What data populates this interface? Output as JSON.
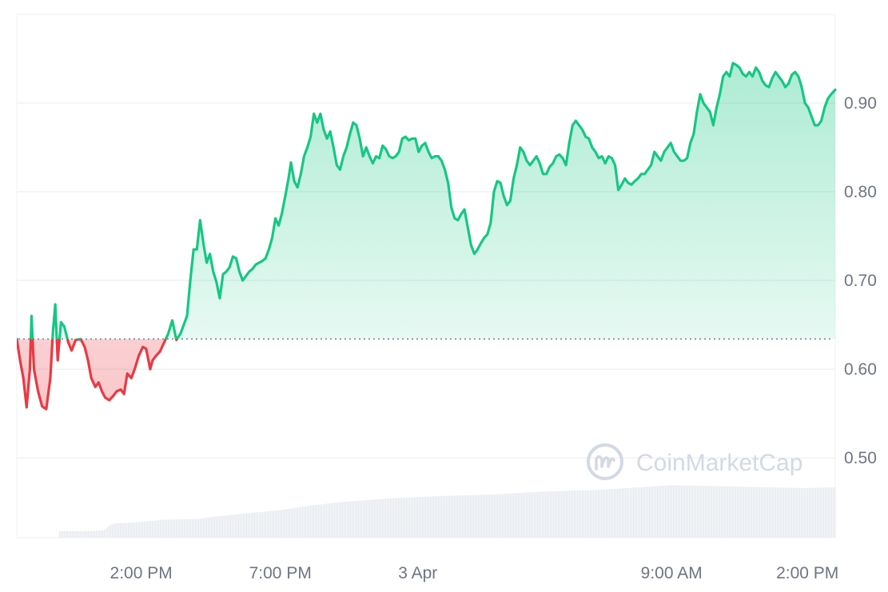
{
  "chart_data": {
    "type": "area",
    "title": "",
    "xlabel": "",
    "ylabel": "",
    "baseline": 0.634,
    "ylim": [
      0.41,
      1.0
    ],
    "yticks": [
      0.5,
      0.6,
      0.7,
      0.8,
      0.9
    ],
    "ytick_labels": [
      "0.50",
      "0.60",
      "0.70",
      "0.80",
      "0.90"
    ],
    "xlim": [
      0,
      100
    ],
    "xtick_positions": [
      15.2,
      32.2,
      49.0,
      80.0,
      96.6
    ],
    "xtick_labels": [
      "2:00 PM",
      "7:00 PM",
      "3 Apr",
      "9:00 AM",
      "2:00 PM"
    ],
    "colors": {
      "up": "#16c784",
      "down": "#ea3943",
      "grid": "#eff2f5",
      "volume": "#e6eaef",
      "axis_text": "#6e7584",
      "watermark": "#d3d9e2"
    },
    "series": [
      {
        "values": [
          [
            0.0,
            0.634
          ],
          [
            0.4,
            0.61
          ],
          [
            0.8,
            0.59
          ],
          [
            1.2,
            0.557
          ],
          [
            1.6,
            0.6
          ],
          [
            1.8,
            0.66
          ],
          [
            2.1,
            0.6
          ],
          [
            2.6,
            0.575
          ],
          [
            3.1,
            0.558
          ],
          [
            3.6,
            0.555
          ],
          [
            4.1,
            0.59
          ],
          [
            4.4,
            0.64
          ],
          [
            4.7,
            0.673
          ],
          [
            5.0,
            0.61
          ],
          [
            5.4,
            0.653
          ],
          [
            5.8,
            0.648
          ],
          [
            6.3,
            0.63
          ],
          [
            6.7,
            0.621
          ],
          [
            7.2,
            0.633
          ],
          [
            7.8,
            0.634
          ],
          [
            8.3,
            0.625
          ],
          [
            8.7,
            0.61
          ],
          [
            9.1,
            0.59
          ],
          [
            9.6,
            0.58
          ],
          [
            10.0,
            0.585
          ],
          [
            10.4,
            0.575
          ],
          [
            10.8,
            0.568
          ],
          [
            11.3,
            0.565
          ],
          [
            11.8,
            0.57
          ],
          [
            12.2,
            0.575
          ],
          [
            12.7,
            0.577
          ],
          [
            13.1,
            0.572
          ],
          [
            13.5,
            0.595
          ],
          [
            14.0,
            0.59
          ],
          [
            14.4,
            0.6
          ],
          [
            14.9,
            0.615
          ],
          [
            15.4,
            0.625
          ],
          [
            15.8,
            0.623
          ],
          [
            16.3,
            0.6
          ],
          [
            16.6,
            0.61
          ],
          [
            17.0,
            0.615
          ],
          [
            17.5,
            0.62
          ],
          [
            18.0,
            0.63
          ],
          [
            18.5,
            0.64
          ],
          [
            19.0,
            0.655
          ],
          [
            19.5,
            0.633
          ],
          [
            20.0,
            0.64
          ],
          [
            20.4,
            0.65
          ],
          [
            20.8,
            0.66
          ],
          [
            21.2,
            0.7
          ],
          [
            21.6,
            0.735
          ],
          [
            22.0,
            0.735
          ],
          [
            22.4,
            0.768
          ],
          [
            22.8,
            0.742
          ],
          [
            23.2,
            0.72
          ],
          [
            23.6,
            0.73
          ],
          [
            24.0,
            0.71
          ],
          [
            24.4,
            0.698
          ],
          [
            24.8,
            0.68
          ],
          [
            25.2,
            0.707
          ],
          [
            25.6,
            0.71
          ],
          [
            26.0,
            0.715
          ],
          [
            26.4,
            0.727
          ],
          [
            26.8,
            0.725
          ],
          [
            27.2,
            0.71
          ],
          [
            27.6,
            0.7
          ],
          [
            28.0,
            0.705
          ],
          [
            28.4,
            0.71
          ],
          [
            28.8,
            0.713
          ],
          [
            29.2,
            0.718
          ],
          [
            29.6,
            0.72
          ],
          [
            30.0,
            0.722
          ],
          [
            30.4,
            0.725
          ],
          [
            30.8,
            0.735
          ],
          [
            31.2,
            0.748
          ],
          [
            31.6,
            0.77
          ],
          [
            32.0,
            0.762
          ],
          [
            32.4,
            0.776
          ],
          [
            32.8,
            0.795
          ],
          [
            33.2,
            0.815
          ],
          [
            33.5,
            0.833
          ],
          [
            33.9,
            0.812
          ],
          [
            34.3,
            0.805
          ],
          [
            34.7,
            0.82
          ],
          [
            35.1,
            0.84
          ],
          [
            35.5,
            0.85
          ],
          [
            35.9,
            0.862
          ],
          [
            36.3,
            0.888
          ],
          [
            36.7,
            0.878
          ],
          [
            37.1,
            0.888
          ],
          [
            37.5,
            0.87
          ],
          [
            37.9,
            0.86
          ],
          [
            38.3,
            0.868
          ],
          [
            38.7,
            0.85
          ],
          [
            39.1,
            0.83
          ],
          [
            39.5,
            0.825
          ],
          [
            39.9,
            0.84
          ],
          [
            40.3,
            0.85
          ],
          [
            40.7,
            0.865
          ],
          [
            41.1,
            0.878
          ],
          [
            41.5,
            0.875
          ],
          [
            41.9,
            0.86
          ],
          [
            42.3,
            0.84
          ],
          [
            42.7,
            0.85
          ],
          [
            43.1,
            0.84
          ],
          [
            43.5,
            0.832
          ],
          [
            43.9,
            0.84
          ],
          [
            44.3,
            0.838
          ],
          [
            44.7,
            0.852
          ],
          [
            45.1,
            0.848
          ],
          [
            45.5,
            0.84
          ],
          [
            45.9,
            0.838
          ],
          [
            46.3,
            0.84
          ],
          [
            46.7,
            0.845
          ],
          [
            47.1,
            0.86
          ],
          [
            47.5,
            0.862
          ],
          [
            47.9,
            0.858
          ],
          [
            48.3,
            0.86
          ],
          [
            48.7,
            0.86
          ],
          [
            49.1,
            0.845
          ],
          [
            49.5,
            0.852
          ],
          [
            49.9,
            0.855
          ],
          [
            50.3,
            0.845
          ],
          [
            50.7,
            0.838
          ],
          [
            51.1,
            0.84
          ],
          [
            51.5,
            0.84
          ],
          [
            51.9,
            0.835
          ],
          [
            52.3,
            0.825
          ],
          [
            52.7,
            0.81
          ],
          [
            53.1,
            0.782
          ],
          [
            53.5,
            0.77
          ],
          [
            53.9,
            0.768
          ],
          [
            54.3,
            0.775
          ],
          [
            54.7,
            0.78
          ],
          [
            55.1,
            0.76
          ],
          [
            55.5,
            0.74
          ],
          [
            55.9,
            0.73
          ],
          [
            56.3,
            0.735
          ],
          [
            56.7,
            0.742
          ],
          [
            57.1,
            0.748
          ],
          [
            57.5,
            0.752
          ],
          [
            57.9,
            0.765
          ],
          [
            58.3,
            0.8
          ],
          [
            58.7,
            0.812
          ],
          [
            59.1,
            0.81
          ],
          [
            59.5,
            0.795
          ],
          [
            59.9,
            0.785
          ],
          [
            60.3,
            0.79
          ],
          [
            60.7,
            0.815
          ],
          [
            61.1,
            0.83
          ],
          [
            61.5,
            0.85
          ],
          [
            61.9,
            0.845
          ],
          [
            62.3,
            0.835
          ],
          [
            62.7,
            0.83
          ],
          [
            63.1,
            0.835
          ],
          [
            63.5,
            0.84
          ],
          [
            63.9,
            0.832
          ],
          [
            64.3,
            0.82
          ],
          [
            64.7,
            0.82
          ],
          [
            65.1,
            0.828
          ],
          [
            65.5,
            0.832
          ],
          [
            65.9,
            0.84
          ],
          [
            66.3,
            0.842
          ],
          [
            66.7,
            0.838
          ],
          [
            67.1,
            0.83
          ],
          [
            67.5,
            0.855
          ],
          [
            67.9,
            0.875
          ],
          [
            68.3,
            0.88
          ],
          [
            68.7,
            0.875
          ],
          [
            69.1,
            0.87
          ],
          [
            69.5,
            0.862
          ],
          [
            69.9,
            0.86
          ],
          [
            70.3,
            0.85
          ],
          [
            70.7,
            0.845
          ],
          [
            71.1,
            0.838
          ],
          [
            71.5,
            0.84
          ],
          [
            71.9,
            0.832
          ],
          [
            72.3,
            0.84
          ],
          [
            72.7,
            0.838
          ],
          [
            73.1,
            0.83
          ],
          [
            73.5,
            0.802
          ],
          [
            73.9,
            0.808
          ],
          [
            74.3,
            0.815
          ],
          [
            74.7,
            0.81
          ],
          [
            75.1,
            0.808
          ],
          [
            75.5,
            0.812
          ],
          [
            75.9,
            0.815
          ],
          [
            76.3,
            0.82
          ],
          [
            76.7,
            0.82
          ],
          [
            77.1,
            0.825
          ],
          [
            77.5,
            0.83
          ],
          [
            77.9,
            0.845
          ],
          [
            78.3,
            0.84
          ],
          [
            78.7,
            0.835
          ],
          [
            79.1,
            0.845
          ],
          [
            79.5,
            0.85
          ],
          [
            79.9,
            0.855
          ],
          [
            80.3,
            0.845
          ],
          [
            80.7,
            0.84
          ],
          [
            81.1,
            0.835
          ],
          [
            81.5,
            0.835
          ],
          [
            81.9,
            0.838
          ],
          [
            82.3,
            0.855
          ],
          [
            82.7,
            0.865
          ],
          [
            83.1,
            0.89
          ],
          [
            83.5,
            0.91
          ],
          [
            83.9,
            0.9
          ],
          [
            84.3,
            0.895
          ],
          [
            84.7,
            0.89
          ],
          [
            85.1,
            0.875
          ],
          [
            85.5,
            0.895
          ],
          [
            85.9,
            0.91
          ],
          [
            86.3,
            0.93
          ],
          [
            86.7,
            0.935
          ],
          [
            87.1,
            0.93
          ],
          [
            87.5,
            0.945
          ],
          [
            87.9,
            0.943
          ],
          [
            88.3,
            0.94
          ],
          [
            88.7,
            0.933
          ],
          [
            89.1,
            0.93
          ],
          [
            89.5,
            0.935
          ],
          [
            89.9,
            0.93
          ],
          [
            90.3,
            0.94
          ],
          [
            90.7,
            0.935
          ],
          [
            91.1,
            0.925
          ],
          [
            91.5,
            0.92
          ],
          [
            91.9,
            0.918
          ],
          [
            92.3,
            0.928
          ],
          [
            92.7,
            0.935
          ],
          [
            93.1,
            0.93
          ],
          [
            93.5,
            0.925
          ],
          [
            93.9,
            0.918
          ],
          [
            94.3,
            0.922
          ],
          [
            94.7,
            0.932
          ],
          [
            95.1,
            0.935
          ],
          [
            95.5,
            0.93
          ],
          [
            95.9,
            0.918
          ],
          [
            96.3,
            0.9
          ],
          [
            96.7,
            0.895
          ],
          [
            97.1,
            0.885
          ],
          [
            97.5,
            0.875
          ],
          [
            97.9,
            0.875
          ],
          [
            98.3,
            0.88
          ],
          [
            98.7,
            0.895
          ],
          [
            99.1,
            0.905
          ],
          [
            99.5,
            0.91
          ],
          [
            100.0,
            0.915
          ]
        ]
      }
    ],
    "volume": {
      "ylim": [
        0,
        1
      ],
      "values": [
        [
          5.0,
          0.0
        ],
        [
          5.1,
          0.09
        ],
        [
          8.0,
          0.09
        ],
        [
          10.5,
          0.1
        ],
        [
          11.4,
          0.18
        ],
        [
          12.0,
          0.2
        ],
        [
          14.0,
          0.21
        ],
        [
          16.0,
          0.23
        ],
        [
          18.0,
          0.25
        ],
        [
          22.0,
          0.26
        ],
        [
          24.0,
          0.29
        ],
        [
          28.0,
          0.34
        ],
        [
          32.0,
          0.38
        ],
        [
          36.0,
          0.45
        ],
        [
          40.0,
          0.5
        ],
        [
          46.0,
          0.55
        ],
        [
          52.0,
          0.58
        ],
        [
          58.0,
          0.6
        ],
        [
          64.0,
          0.64
        ],
        [
          70.0,
          0.66
        ],
        [
          76.0,
          0.7
        ],
        [
          80.0,
          0.73
        ],
        [
          84.0,
          0.72
        ],
        [
          88.0,
          0.71
        ],
        [
          92.0,
          0.7
        ],
        [
          96.0,
          0.69
        ],
        [
          100.0,
          0.7
        ]
      ]
    },
    "watermark": "CoinMarketCap",
    "grid": true
  }
}
